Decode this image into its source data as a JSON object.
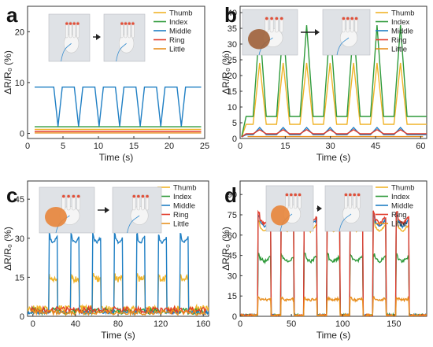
{
  "figure": {
    "legend_labels": [
      "Thumb",
      "Index",
      "Middle",
      "Ring",
      "Little"
    ],
    "colors": {
      "thumb": "#f0b429",
      "index": "#2e9a3a",
      "middle": "#1f7fc4",
      "ring": "#e23b2a",
      "little": "#e88f1e",
      "axis": "#333333"
    }
  },
  "chart_data": [
    {
      "panel": "a",
      "type": "line",
      "xlabel": "Time (s)",
      "ylabel": "ΔR/R₀ (%)",
      "xlim": [
        0,
        25
      ],
      "ylim": [
        -1,
        25
      ],
      "xticks": [
        0,
        5,
        10,
        15,
        20,
        25
      ],
      "yticks": [
        0,
        10,
        20
      ],
      "legend": "top-right",
      "series": [
        {
          "name": "Thumb",
          "color": "#f0b429",
          "kind": "flat",
          "level": 0.8
        },
        {
          "name": "Index",
          "color": "#2e9a3a",
          "kind": "flat",
          "level": 1.3
        },
        {
          "name": "Middle",
          "color": "#1f7fc4",
          "kind": "dip",
          "high": 9.1,
          "low": 1.4,
          "start": 1.0,
          "end": 24.5,
          "cycles": 7,
          "first": 4.3,
          "period": 2.9
        },
        {
          "name": "Ring",
          "color": "#e23b2a",
          "kind": "flat",
          "level": 0.4
        },
        {
          "name": "Little",
          "color": "#e88f1e",
          "kind": "flat",
          "level": 0.1
        }
      ]
    },
    {
      "panel": "b",
      "type": "line",
      "xlabel": "Time (s)",
      "ylabel": "ΔR/R₀ (%)",
      "xlim": [
        0,
        62
      ],
      "ylim": [
        0,
        42
      ],
      "xticks": [
        0,
        15,
        30,
        45,
        60
      ],
      "yticks": [
        0,
        5,
        10,
        15,
        20,
        25,
        30,
        35,
        40
      ],
      "legend": "top-right",
      "series": [
        {
          "name": "Thumb",
          "color": "#f0b429",
          "kind": "tri",
          "base": 4.5,
          "peak": 24,
          "first": 6.5,
          "period": 7.8,
          "cycles": 7
        },
        {
          "name": "Index",
          "color": "#2e9a3a",
          "kind": "tri",
          "base": 7,
          "peak": 36,
          "first": 6.5,
          "period": 7.8,
          "cycles": 7
        },
        {
          "name": "Middle",
          "color": "#1f7fc4",
          "kind": "tri",
          "base": 1.2,
          "peak": 3.5,
          "first": 6.5,
          "period": 7.8,
          "cycles": 7
        },
        {
          "name": "Ring",
          "color": "#e23b2a",
          "kind": "tri",
          "base": 1.5,
          "peak": 2.8,
          "first": 6.5,
          "period": 7.8,
          "cycles": 7
        },
        {
          "name": "Little",
          "color": "#e88f1e",
          "kind": "flat",
          "level": 0.6
        }
      ]
    },
    {
      "panel": "c",
      "type": "line",
      "xlabel": "Time (s)",
      "ylabel": "ΔR/R₀ (%)",
      "xlim": [
        -5,
        165
      ],
      "ylim": [
        0,
        52
      ],
      "xticks": [
        0,
        40,
        80,
        120,
        160
      ],
      "yticks": [
        0,
        15,
        30,
        45
      ],
      "legend": "top-right",
      "series": [
        {
          "name": "Thumb",
          "color": "#f0b429",
          "kind": "pulse",
          "base": 3,
          "top": 15,
          "first": 15,
          "period": 20.5,
          "width": 8,
          "cycles": 7,
          "noise": 1.2
        },
        {
          "name": "Index",
          "color": "#2e9a3a",
          "kind": "noise",
          "level": 2,
          "noise": 1.2
        },
        {
          "name": "Middle",
          "color": "#1f7fc4",
          "kind": "pulse",
          "base": 1.5,
          "top": 30.5,
          "first": 15,
          "period": 20.5,
          "width": 8,
          "cycles": 7,
          "noise": 0.5
        },
        {
          "name": "Ring",
          "color": "#e23b2a",
          "kind": "noise",
          "level": 2.5,
          "noise": 1.2
        },
        {
          "name": "Little",
          "color": "#e88f1e",
          "kind": "noise",
          "level": 1.5,
          "noise": 1.0
        }
      ]
    },
    {
      "panel": "d",
      "type": "line",
      "xlabel": "Time (s)",
      "ylabel": "ΔR/R₀ (%)",
      "xlim": [
        0,
        182
      ],
      "ylim": [
        0,
        100
      ],
      "xticks": [
        0,
        50,
        100,
        150
      ],
      "yticks": [
        0,
        15,
        30,
        45,
        60,
        75,
        90
      ],
      "legend": "top-right",
      "series": [
        {
          "name": "Thumb",
          "color": "#f0b429",
          "kind": "pulse",
          "base": 0.5,
          "top": 68,
          "first": 17,
          "period": 22.5,
          "width": 13,
          "cycles": 7,
          "noise": 0.5
        },
        {
          "name": "Index",
          "color": "#2e9a3a",
          "kind": "pulse",
          "base": 0.5,
          "top": 44,
          "first": 17,
          "period": 22.5,
          "width": 13,
          "cycles": 7,
          "noise": 1.2
        },
        {
          "name": "Middle",
          "color": "#1f7fc4",
          "kind": "pulse",
          "base": 0.5,
          "top": 72,
          "first": 17,
          "period": 22.5,
          "width": 13,
          "cycles": 7,
          "noise": 1.0
        },
        {
          "name": "Ring",
          "color": "#e23b2a",
          "kind": "pulse",
          "base": 0.5,
          "top": 74,
          "first": 17,
          "period": 22.5,
          "width": 13,
          "cycles": 7,
          "noise": 1.0
        },
        {
          "name": "Little",
          "color": "#e88f1e",
          "kind": "pulse",
          "base": 0.5,
          "top": 13,
          "first": 17,
          "period": 22.5,
          "width": 13,
          "cycles": 7,
          "noise": 1.0
        }
      ]
    }
  ]
}
